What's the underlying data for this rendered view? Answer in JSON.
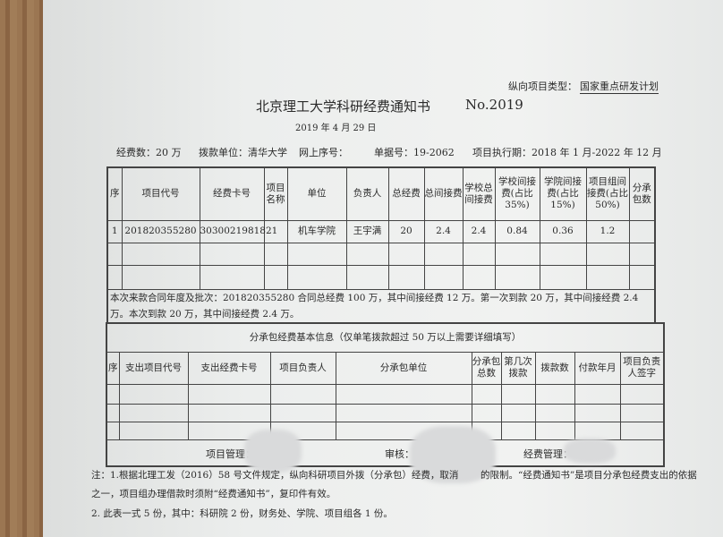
{
  "header": {
    "project_type_label": "纵向项目类型：",
    "project_type_value": "国家重点研发计划",
    "title": "北京理工大学科研经费通知书",
    "number": "No.2019",
    "date": "2019 年 4 月 29 日",
    "funds": "经费数：20 万",
    "allocating_unit": "拨款单位：清华大学",
    "online_seq": "网上序号：",
    "doc_no": "单据号：19-2062",
    "period": "项目执行期：2018 年 1 月-2022 年 12 月"
  },
  "main_table": {
    "headers": [
      "序",
      "项目代号",
      "经费卡号",
      "项目名称",
      "单位",
      "负责人",
      "总经费",
      "总间接费",
      "学校总间接费",
      "学校间接费(占比 35%)",
      "学院间接费(占比 15%)",
      "项目组间接费(占比 50%)",
      "分承包数"
    ],
    "rows": [
      [
        "1",
        "201820355280",
        "3030021981821",
        "",
        "机车学院",
        "王宇满",
        "20",
        "2.4",
        "2.4",
        "0.84",
        "0.36",
        "1.2",
        ""
      ],
      [
        "",
        "",
        "",
        "",
        "",
        "",
        "",
        "",
        "",
        "",
        "",
        "",
        ""
      ],
      [
        "",
        "",
        "",
        "",
        "",
        "",
        "",
        "",
        "",
        "",
        "",
        "",
        ""
      ]
    ],
    "remark": "本次来款合同年度及批次：201820355280 合同总经费 100 万，其中间接经费 12 万。第一次到款 20 万，其中间接经费 2.4 万。本次到款 20 万，其中间接经费 2.4 万。"
  },
  "sub_table": {
    "title": "分承包经费基本信息（仅单笔拨款超过 50 万以上需要详细填写）",
    "headers": [
      "序",
      "支出项目代号",
      "支出经费卡号",
      "项目负责人",
      "分承包单位",
      "分承包总数",
      "第几次拨款",
      "拨款数",
      "付款年月",
      "项目负责人签字"
    ],
    "rows": [
      [
        "",
        "",
        "",
        "",
        "",
        "",
        "",
        "",
        "",
        ""
      ],
      [
        "",
        "",
        "",
        "",
        "",
        "",
        "",
        "",
        "",
        ""
      ],
      [
        "",
        "",
        "",
        "",
        "",
        "",
        "",
        "",
        "",
        ""
      ]
    ],
    "sign_project": "项目管理：",
    "sign_audit": "审核：",
    "sign_funds": "经费管理："
  },
  "notes": {
    "line1a": "注：1.根据北理工发（2016）58 号文件规定，纵向科研项目外拨（分承包）经费，取消",
    "line1b": "的限制。“经费通知书”是项目分承包经费支出的依据",
    "line2": "之一，项目组办理借款时须附“经费通知书”，复印件有效。",
    "line3": "2. 此表一式 5 份，其中：科研院 2 份，财务处、学院、项目组各 1 份。"
  }
}
